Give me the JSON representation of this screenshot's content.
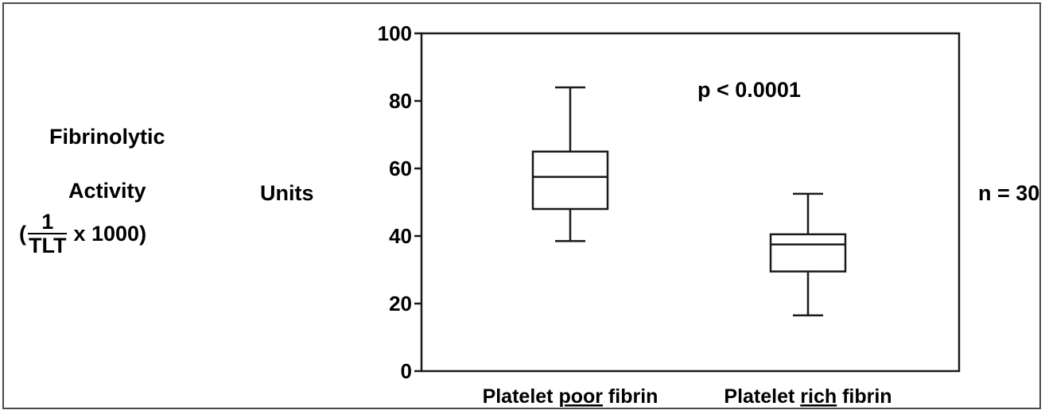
{
  "chart_data": {
    "type": "boxplot",
    "categories": [
      "Platelet poor fibrin",
      "Platelet rich fibrin"
    ],
    "category_parts": [
      {
        "pre": "Platelet ",
        "underlined": "poor",
        "post": " fibrin"
      },
      {
        "pre": "Platelet ",
        "underlined": "rich",
        "post": " fibrin"
      }
    ],
    "boxes": [
      {
        "min": 38.5,
        "q1": 48,
        "median": 57.5,
        "q3": 65,
        "max": 84
      },
      {
        "min": 16.5,
        "q1": 29.5,
        "median": 37.5,
        "q3": 40.5,
        "max": 52.5
      }
    ],
    "ylim": [
      0,
      100
    ],
    "yticks": [
      0,
      20,
      40,
      60,
      80,
      100
    ],
    "ytick_labels": [
      "0",
      "20",
      "40",
      "60",
      "80",
      "100"
    ],
    "ylabel": {
      "line1": "Fibrinolytic",
      "line2": "Activity",
      "formula_open": "(",
      "formula_num": "1",
      "formula_den": "TLT",
      "formula_rest": "x 1000)",
      "units": "Units"
    },
    "annotation": "p < 0.0001",
    "side_note": "n = 30",
    "grid": false,
    "box_fill": "#ffffff",
    "stroke_color": "#1a1a1a"
  }
}
